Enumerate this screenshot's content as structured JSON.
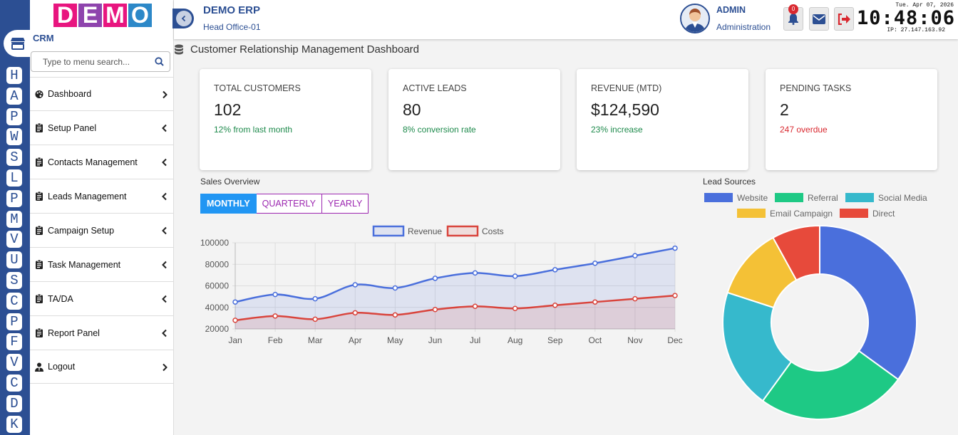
{
  "rail": {
    "letters": [
      "H",
      "A",
      "P",
      "W",
      "S",
      "L",
      "P",
      "M",
      "V",
      "U",
      "S",
      "C",
      "P",
      "F",
      "V",
      "C",
      "D",
      "K"
    ]
  },
  "sidebar": {
    "logo": [
      "D",
      "E",
      "M",
      "O"
    ],
    "logo_colors": [
      "#e8157f",
      "#8e44ad",
      "#e8157f",
      "#2c88c8"
    ],
    "module_title": "CRM",
    "search_placeholder": "Type to menu search...",
    "items": [
      {
        "label": "Dashboard",
        "icon": "palette-icon",
        "chevron": "right"
      },
      {
        "label": "Setup Panel",
        "icon": "clipboard-icon",
        "chevron": "left"
      },
      {
        "label": "Contacts Management",
        "icon": "clipboard-icon",
        "chevron": "left"
      },
      {
        "label": "Leads Management",
        "icon": "clipboard-icon",
        "chevron": "left"
      },
      {
        "label": "Campaign Setup",
        "icon": "clipboard-icon",
        "chevron": "left"
      },
      {
        "label": "Task Management",
        "icon": "clipboard-icon",
        "chevron": "left"
      },
      {
        "label": "TA/DA",
        "icon": "clipboard-icon",
        "chevron": "left"
      },
      {
        "label": "Report Panel",
        "icon": "clipboard-icon",
        "chevron": "left"
      },
      {
        "label": "Logout",
        "icon": "user-tie-icon",
        "chevron": "right"
      }
    ]
  },
  "header": {
    "app_title": "DEMO ERP",
    "branch": "Head Office-01",
    "user_name": "ADMIN",
    "user_role": "Administration",
    "notification_count": "0",
    "clock": {
      "date": "Tue. Apr 07, 2026",
      "time": "10:48:06",
      "ip": "IP: 27.147.163.92"
    }
  },
  "page": {
    "title": "Customer Relationship Management Dashboard"
  },
  "cards": [
    {
      "label": "TOTAL CUSTOMERS",
      "value": "102",
      "sub": "12% from last month",
      "sub_color": "#1e8a4c"
    },
    {
      "label": "ACTIVE LEADS",
      "value": "80",
      "sub": "8% conversion rate",
      "sub_color": "#1e8a4c"
    },
    {
      "label": "REVENUE (MTD)",
      "value": "$124,590",
      "sub": "23% increase",
      "sub_color": "#1e8a4c"
    },
    {
      "label": "PENDING TASKS",
      "value": "2",
      "sub": "247 overdue",
      "sub_color": "#d9282f"
    }
  ],
  "sales": {
    "title": "Sales Overview",
    "tabs": [
      "MONTHLY",
      "QUARTERLY",
      "YEARLY"
    ],
    "active_tab": 0
  },
  "leads": {
    "title": "Lead Sources"
  },
  "chart_data": [
    {
      "type": "line",
      "categories": [
        "Jan",
        "Feb",
        "Mar",
        "Apr",
        "May",
        "Jun",
        "Jul",
        "Aug",
        "Sep",
        "Oct",
        "Nov",
        "Dec"
      ],
      "series": [
        {
          "name": "Revenue",
          "values": [
            45000,
            52000,
            48000,
            61000,
            58000,
            67000,
            72000,
            69000,
            75000,
            81000,
            88000,
            95000
          ],
          "color": "#4a6fdc"
        },
        {
          "name": "Costs",
          "values": [
            28000,
            32000,
            29000,
            35000,
            33000,
            38000,
            41000,
            39000,
            42000,
            45000,
            48000,
            51000
          ],
          "color": "#d9443c"
        }
      ],
      "yticks": [
        20000,
        40000,
        60000,
        80000,
        100000
      ],
      "ylim": [
        20000,
        100000
      ],
      "grid": true,
      "legend": "top"
    },
    {
      "type": "pie",
      "labels": [
        "Website",
        "Referral",
        "Social Media",
        "Email Campaign",
        "Direct"
      ],
      "values": [
        35,
        25,
        20,
        12,
        8
      ],
      "colors": [
        "#4a6fdc",
        "#1ec985",
        "#36b9cc",
        "#f4c136",
        "#e74a3b"
      ],
      "legend": "top"
    }
  ]
}
